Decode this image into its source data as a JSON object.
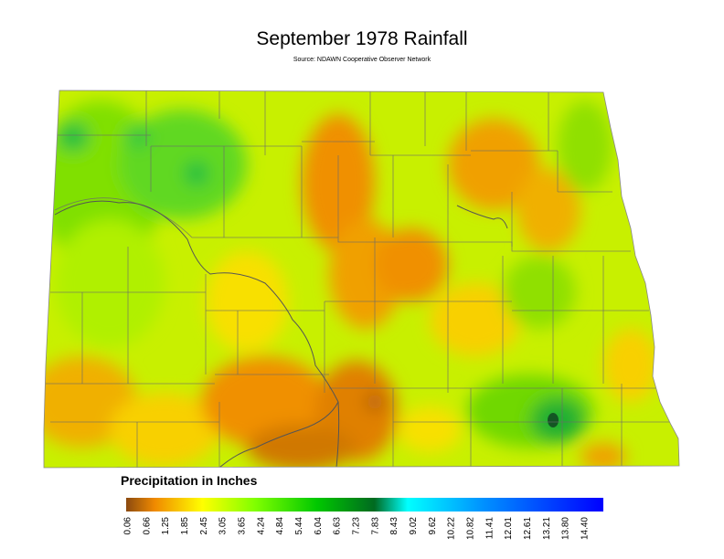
{
  "header": {
    "title": "September 1978 Rainfall",
    "source": "Source: NDAWN Cooperative Observer Network"
  },
  "legend": {
    "title": "Precipitation in Inches",
    "labels": [
      "0.06",
      "0.66",
      "1.25",
      "1.85",
      "2.45",
      "3.05",
      "3.65",
      "4.24",
      "4.84",
      "5.44",
      "6.04",
      "6.63",
      "7.23",
      "7.83",
      "8.43",
      "9.02",
      "9.62",
      "10.22",
      "10.82",
      "11.41",
      "12.01",
      "12.61",
      "13.21",
      "13.80",
      "14.40"
    ]
  }
}
